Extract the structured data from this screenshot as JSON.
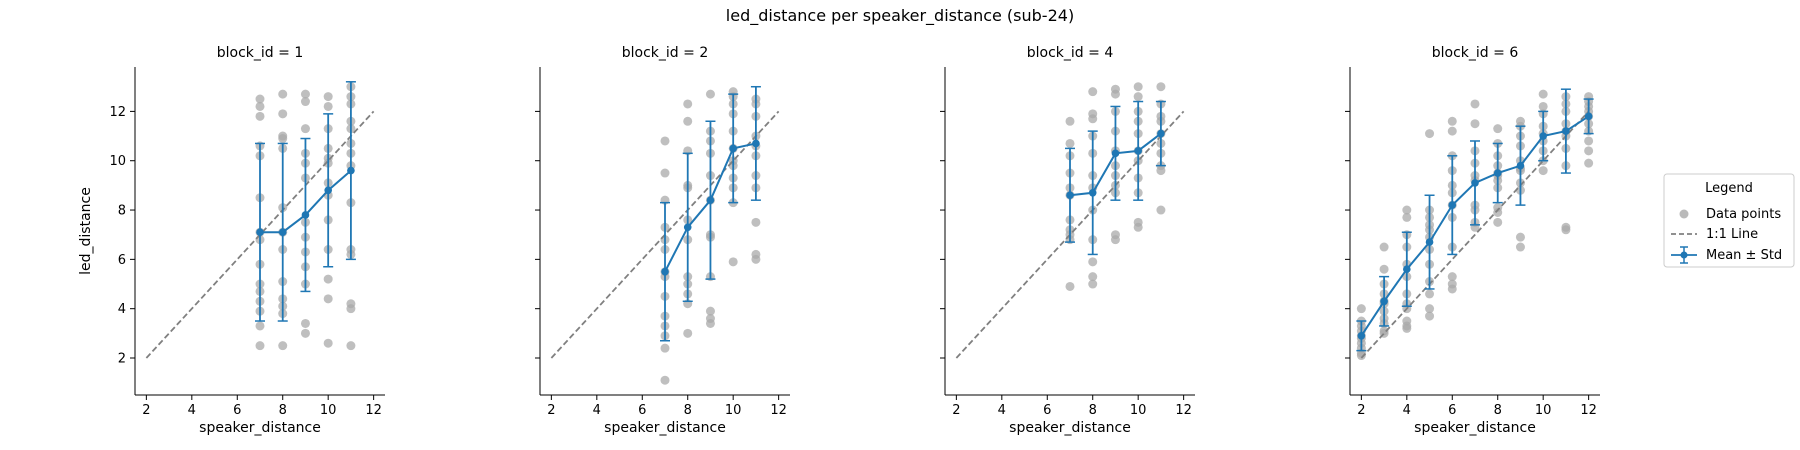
{
  "figure": {
    "title": "led_distance per speaker_distance (sub-24)"
  },
  "legend": {
    "title": "Legend",
    "entries": [
      {
        "label": "Data points",
        "marker": "dot",
        "color": "#a9a9a9"
      },
      {
        "label": "1:1 Line",
        "marker": "dashed",
        "color": "#808080"
      },
      {
        "label": "Mean ± Std",
        "marker": "errorbar",
        "color": "#1f77b4"
      }
    ],
    "placement": "right"
  },
  "colors": {
    "mean": "#1f77b4",
    "points": "#a9a9a9",
    "identity": "#808080",
    "axis": "#000000"
  },
  "chart_data": [
    {
      "type": "scatter",
      "title": "block_id = 1",
      "xlabel": "speaker_distance",
      "ylabel": "led_distance",
      "xlim": [
        1.5,
        12.5
      ],
      "ylim": [
        0.5,
        13.8
      ],
      "xticks": [
        2,
        4,
        6,
        8,
        10,
        12
      ],
      "yticks": [
        2,
        4,
        6,
        8,
        10,
        12
      ],
      "identity_line": [
        2,
        12
      ],
      "mean": {
        "x": [
          7,
          8,
          9,
          10,
          11
        ],
        "y": [
          7.1,
          7.1,
          7.8,
          8.8,
          9.6
        ],
        "std": [
          3.6,
          3.6,
          3.1,
          3.1,
          3.6
        ]
      },
      "points": [
        [
          7,
          12.5
        ],
        [
          7,
          12.2
        ],
        [
          7,
          11.8
        ],
        [
          7,
          10.6
        ],
        [
          7,
          10.2
        ],
        [
          7,
          8.5
        ],
        [
          7,
          7.1
        ],
        [
          7,
          6.8
        ],
        [
          7,
          5.8
        ],
        [
          7,
          5.0
        ],
        [
          7,
          4.7
        ],
        [
          7,
          4.3
        ],
        [
          7,
          3.9
        ],
        [
          7,
          3.3
        ],
        [
          7,
          2.5
        ],
        [
          8,
          12.7
        ],
        [
          8,
          11.9
        ],
        [
          8,
          11.0
        ],
        [
          8,
          10.9
        ],
        [
          8,
          10.5
        ],
        [
          8,
          8.1
        ],
        [
          8,
          7.1
        ],
        [
          8,
          6.4
        ],
        [
          8,
          5.1
        ],
        [
          8,
          4.4
        ],
        [
          8,
          4.1
        ],
        [
          8,
          3.8
        ],
        [
          8,
          2.5
        ],
        [
          9,
          12.7
        ],
        [
          9,
          12.4
        ],
        [
          9,
          11.3
        ],
        [
          9,
          10.3
        ],
        [
          9,
          9.9
        ],
        [
          9,
          9.3
        ],
        [
          9,
          7.5
        ],
        [
          9,
          6.9
        ],
        [
          9,
          6.3
        ],
        [
          9,
          5.7
        ],
        [
          9,
          5.0
        ],
        [
          9,
          3.4
        ],
        [
          9,
          3.0
        ],
        [
          10,
          12.6
        ],
        [
          10,
          12.2
        ],
        [
          10,
          11.3
        ],
        [
          10,
          10.5
        ],
        [
          10,
          10.1
        ],
        [
          10,
          9.9
        ],
        [
          10,
          9.1
        ],
        [
          10,
          8.6
        ],
        [
          10,
          7.6
        ],
        [
          10,
          6.4
        ],
        [
          10,
          5.2
        ],
        [
          10,
          4.4
        ],
        [
          10,
          2.6
        ],
        [
          11,
          13.0
        ],
        [
          11,
          12.6
        ],
        [
          11,
          12.3
        ],
        [
          11,
          11.6
        ],
        [
          11,
          11.3
        ],
        [
          11,
          10.7
        ],
        [
          11,
          10.3
        ],
        [
          11,
          9.8
        ],
        [
          11,
          8.3
        ],
        [
          11,
          6.4
        ],
        [
          11,
          6.2
        ],
        [
          11,
          4.2
        ],
        [
          11,
          4.0
        ],
        [
          11,
          2.5
        ]
      ]
    },
    {
      "type": "scatter",
      "title": "block_id = 2",
      "xlabel": "speaker_distance",
      "ylabel": "",
      "xlim": [
        1.5,
        12.5
      ],
      "ylim": [
        0.5,
        13.8
      ],
      "xticks": [
        2,
        4,
        6,
        8,
        10,
        12
      ],
      "yticks": [
        2,
        4,
        6,
        8,
        10,
        12
      ],
      "identity_line": [
        2,
        12
      ],
      "mean": {
        "x": [
          7,
          8,
          9,
          10,
          11
        ],
        "y": [
          5.5,
          7.3,
          8.4,
          10.5,
          10.7
        ],
        "std": [
          2.8,
          3.0,
          3.2,
          2.2,
          2.3
        ]
      },
      "points": [
        [
          7,
          10.8
        ],
        [
          7,
          9.5
        ],
        [
          7,
          8.4
        ],
        [
          7,
          7.3
        ],
        [
          7,
          6.8
        ],
        [
          7,
          6.4
        ],
        [
          7,
          5.5
        ],
        [
          7,
          5.3
        ],
        [
          7,
          4.5
        ],
        [
          7,
          3.7
        ],
        [
          7,
          3.3
        ],
        [
          7,
          2.9
        ],
        [
          7,
          2.4
        ],
        [
          7,
          1.1
        ],
        [
          8,
          12.3
        ],
        [
          8,
          11.6
        ],
        [
          8,
          10.4
        ],
        [
          8,
          9.0
        ],
        [
          8,
          8.9
        ],
        [
          8,
          7.6
        ],
        [
          8,
          6.8
        ],
        [
          8,
          5.3
        ],
        [
          8,
          5.0
        ],
        [
          8,
          4.6
        ],
        [
          8,
          4.2
        ],
        [
          8,
          3.0
        ],
        [
          9,
          12.7
        ],
        [
          9,
          11.2
        ],
        [
          9,
          10.8
        ],
        [
          9,
          10.3
        ],
        [
          9,
          9.4
        ],
        [
          9,
          8.4
        ],
        [
          9,
          7.0
        ],
        [
          9,
          6.9
        ],
        [
          9,
          5.3
        ],
        [
          9,
          3.9
        ],
        [
          9,
          3.6
        ],
        [
          9,
          3.4
        ],
        [
          10,
          12.8
        ],
        [
          10,
          12.6
        ],
        [
          10,
          12.3
        ],
        [
          10,
          11.9
        ],
        [
          10,
          11.2
        ],
        [
          10,
          10.5
        ],
        [
          10,
          10.0
        ],
        [
          10,
          9.8
        ],
        [
          10,
          9.3
        ],
        [
          10,
          8.9
        ],
        [
          10,
          8.3
        ],
        [
          10,
          5.9
        ],
        [
          11,
          12.5
        ],
        [
          11,
          12.3
        ],
        [
          11,
          11.8
        ],
        [
          11,
          11.0
        ],
        [
          11,
          10.6
        ],
        [
          11,
          10.2
        ],
        [
          11,
          9.4
        ],
        [
          11,
          8.9
        ],
        [
          11,
          7.5
        ],
        [
          11,
          6.2
        ],
        [
          11,
          6.0
        ]
      ]
    },
    {
      "type": "scatter",
      "title": "block_id = 4",
      "xlabel": "speaker_distance",
      "ylabel": "",
      "xlim": [
        1.5,
        12.5
      ],
      "ylim": [
        0.5,
        13.8
      ],
      "xticks": [
        2,
        4,
        6,
        8,
        10,
        12
      ],
      "yticks": [
        2,
        4,
        6,
        8,
        10,
        12
      ],
      "identity_line": [
        2,
        12
      ],
      "mean": {
        "x": [
          7,
          8,
          9,
          10,
          11
        ],
        "y": [
          8.6,
          8.7,
          10.3,
          10.4,
          11.1
        ],
        "std": [
          1.9,
          2.5,
          1.9,
          2.0,
          1.3
        ]
      },
      "points": [
        [
          7,
          11.6
        ],
        [
          7,
          10.7
        ],
        [
          7,
          10.2
        ],
        [
          7,
          9.5
        ],
        [
          7,
          8.9
        ],
        [
          7,
          8.6
        ],
        [
          7,
          7.6
        ],
        [
          7,
          7.2
        ],
        [
          7,
          7.0
        ],
        [
          7,
          6.8
        ],
        [
          7,
          4.9
        ],
        [
          8,
          12.8
        ],
        [
          8,
          11.9
        ],
        [
          8,
          11.7
        ],
        [
          8,
          11.0
        ],
        [
          8,
          10.3
        ],
        [
          8,
          9.4
        ],
        [
          8,
          8.9
        ],
        [
          8,
          8.0
        ],
        [
          8,
          6.8
        ],
        [
          8,
          5.9
        ],
        [
          8,
          5.3
        ],
        [
          8,
          5.0
        ],
        [
          9,
          12.9
        ],
        [
          9,
          12.7
        ],
        [
          9,
          12.0
        ],
        [
          9,
          11.2
        ],
        [
          9,
          10.4
        ],
        [
          9,
          9.8
        ],
        [
          9,
          9.4
        ],
        [
          9,
          9.0
        ],
        [
          9,
          8.7
        ],
        [
          9,
          7.0
        ],
        [
          9,
          6.8
        ],
        [
          10,
          13.0
        ],
        [
          10,
          12.6
        ],
        [
          10,
          12.0
        ],
        [
          10,
          11.6
        ],
        [
          10,
          11.1
        ],
        [
          10,
          10.4
        ],
        [
          10,
          10.0
        ],
        [
          10,
          9.3
        ],
        [
          10,
          8.7
        ],
        [
          10,
          7.5
        ],
        [
          10,
          7.3
        ],
        [
          11,
          13.0
        ],
        [
          11,
          12.3
        ],
        [
          11,
          11.8
        ],
        [
          11,
          11.6
        ],
        [
          11,
          11.1
        ],
        [
          11,
          10.7
        ],
        [
          11,
          10.3
        ],
        [
          11,
          9.8
        ],
        [
          11,
          9.6
        ],
        [
          11,
          8.0
        ]
      ]
    },
    {
      "type": "scatter",
      "title": "block_id = 6",
      "xlabel": "speaker_distance",
      "ylabel": "",
      "xlim": [
        1.5,
        12.5
      ],
      "ylim": [
        0.5,
        13.8
      ],
      "xticks": [
        2,
        4,
        6,
        8,
        10,
        12
      ],
      "yticks": [
        2,
        4,
        6,
        8,
        10,
        12
      ],
      "identity_line": [
        2,
        12
      ],
      "mean": {
        "x": [
          2,
          3,
          4,
          5,
          6,
          7,
          8,
          9,
          10,
          11,
          12
        ],
        "y": [
          2.9,
          4.3,
          5.6,
          6.7,
          8.2,
          9.1,
          9.5,
          9.8,
          11.0,
          11.2,
          11.8
        ],
        "std": [
          0.6,
          1.0,
          1.5,
          1.9,
          2.0,
          1.7,
          1.2,
          1.6,
          1.0,
          1.7,
          0.7
        ]
      },
      "points": [
        [
          2,
          4.0
        ],
        [
          2,
          3.5
        ],
        [
          2,
          3.3
        ],
        [
          2,
          3.1
        ],
        [
          2,
          2.9
        ],
        [
          2,
          2.8
        ],
        [
          2,
          2.6
        ],
        [
          2,
          2.4
        ],
        [
          2,
          2.2
        ],
        [
          2,
          2.1
        ],
        [
          3,
          6.5
        ],
        [
          3,
          5.6
        ],
        [
          3,
          5.0
        ],
        [
          3,
          4.6
        ],
        [
          3,
          4.3
        ],
        [
          3,
          4.2
        ],
        [
          3,
          3.9
        ],
        [
          3,
          3.6
        ],
        [
          3,
          3.4
        ],
        [
          3,
          3.1
        ],
        [
          3,
          3.0
        ],
        [
          4,
          8.0
        ],
        [
          4,
          7.7
        ],
        [
          4,
          7.0
        ],
        [
          4,
          6.5
        ],
        [
          4,
          5.8
        ],
        [
          4,
          5.3
        ],
        [
          4,
          4.6
        ],
        [
          4,
          4.2
        ],
        [
          4,
          4.0
        ],
        [
          4,
          3.5
        ],
        [
          4,
          3.3
        ],
        [
          4,
          3.2
        ],
        [
          5,
          11.1
        ],
        [
          5,
          8.0
        ],
        [
          5,
          7.7
        ],
        [
          5,
          7.4
        ],
        [
          5,
          7.2
        ],
        [
          5,
          6.9
        ],
        [
          5,
          6.4
        ],
        [
          5,
          5.8
        ],
        [
          5,
          5.1
        ],
        [
          5,
          4.6
        ],
        [
          5,
          4.0
        ],
        [
          5,
          3.7
        ],
        [
          6,
          11.6
        ],
        [
          6,
          11.2
        ],
        [
          6,
          10.2
        ],
        [
          6,
          9.6
        ],
        [
          6,
          9.0
        ],
        [
          6,
          8.7
        ],
        [
          6,
          8.2
        ],
        [
          6,
          7.7
        ],
        [
          6,
          6.5
        ],
        [
          6,
          5.3
        ],
        [
          6,
          5.0
        ],
        [
          6,
          4.8
        ],
        [
          7,
          12.3
        ],
        [
          7,
          11.5
        ],
        [
          7,
          10.4
        ],
        [
          7,
          9.9
        ],
        [
          7,
          9.4
        ],
        [
          7,
          9.2
        ],
        [
          7,
          8.2
        ],
        [
          7,
          8.0
        ],
        [
          7,
          7.5
        ],
        [
          7,
          7.3
        ],
        [
          8,
          11.3
        ],
        [
          8,
          10.7
        ],
        [
          8,
          10.2
        ],
        [
          8,
          9.8
        ],
        [
          8,
          9.5
        ],
        [
          8,
          9.4
        ],
        [
          8,
          9.2
        ],
        [
          8,
          8.9
        ],
        [
          8,
          8.1
        ],
        [
          8,
          7.9
        ],
        [
          8,
          7.5
        ],
        [
          9,
          11.6
        ],
        [
          9,
          11.4
        ],
        [
          9,
          11.0
        ],
        [
          9,
          10.6
        ],
        [
          9,
          10.0
        ],
        [
          9,
          9.7
        ],
        [
          9,
          9.6
        ],
        [
          9,
          9.1
        ],
        [
          9,
          8.8
        ],
        [
          9,
          6.9
        ],
        [
          9,
          6.5
        ],
        [
          10,
          12.7
        ],
        [
          10,
          12.2
        ],
        [
          10,
          11.9
        ],
        [
          10,
          11.4
        ],
        [
          10,
          11.1
        ],
        [
          10,
          10.8
        ],
        [
          10,
          10.4
        ],
        [
          10,
          10.0
        ],
        [
          10,
          9.6
        ],
        [
          11,
          12.6
        ],
        [
          11,
          12.3
        ],
        [
          11,
          12.0
        ],
        [
          11,
          11.5
        ],
        [
          11,
          11.2
        ],
        [
          11,
          11.0
        ],
        [
          11,
          10.5
        ],
        [
          11,
          9.8
        ],
        [
          11,
          7.3
        ],
        [
          11,
          7.2
        ],
        [
          12,
          12.6
        ],
        [
          12,
          12.4
        ],
        [
          12,
          12.2
        ],
        [
          12,
          12.0
        ],
        [
          12,
          11.8
        ],
        [
          12,
          11.5
        ],
        [
          12,
          11.2
        ],
        [
          12,
          10.8
        ],
        [
          12,
          10.4
        ],
        [
          12,
          9.9
        ]
      ]
    }
  ]
}
